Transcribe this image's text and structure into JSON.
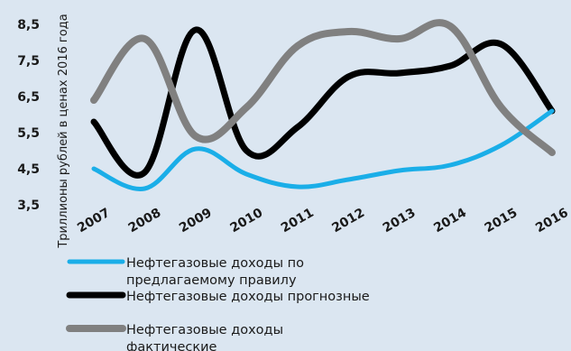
{
  "chart_data": {
    "type": "line",
    "title": "",
    "xlabel": "",
    "ylabel": "Триллионы рублей в ценах 2016 года",
    "x": [
      "2007",
      "2008",
      "2009",
      "2010",
      "2011",
      "2012",
      "2013",
      "2014",
      "2015",
      "2016"
    ],
    "y_ticks": [
      "8,5",
      "7,5",
      "6,5",
      "5,5",
      "4,5",
      "3,5"
    ],
    "ylim": [
      3.5,
      8.5
    ],
    "grid": false,
    "legend_position": "bottom",
    "series": [
      {
        "name": "Нефтегазовые доходы по предлагаемому правилу",
        "legend_lines": [
          "Нефтегазовые доходы по",
          "предлагаемому правилу"
        ],
        "color": "#1aaee8",
        "values": [
          4.5,
          3.95,
          5.05,
          4.35,
          4.0,
          4.2,
          4.45,
          4.6,
          5.15,
          6.1
        ]
      },
      {
        "name": "Нефтегазовые доходы прогнозные",
        "legend_lines": [
          "Нефтегазовые доходы прогнозные"
        ],
        "color": "#000000",
        "values": [
          5.8,
          4.4,
          8.35,
          5.0,
          5.65,
          7.05,
          7.15,
          7.35,
          7.95,
          6.1
        ]
      },
      {
        "name": "Нефтегазовые доходы фактические",
        "legend_lines": [
          "Нефтегазовые доходы",
          "фактические"
        ],
        "color": "#808080",
        "values": [
          6.4,
          8.1,
          5.4,
          6.2,
          7.9,
          8.3,
          8.1,
          8.45,
          6.2,
          4.95
        ]
      }
    ]
  }
}
